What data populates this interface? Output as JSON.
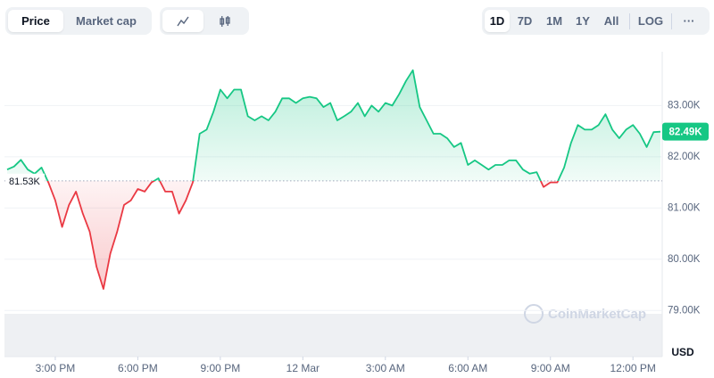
{
  "toolbar": {
    "tabs": [
      "Price",
      "Market cap"
    ],
    "ranges": [
      "1D",
      "7D",
      "1M",
      "1Y",
      "All"
    ],
    "log": "LOG",
    "more": "···"
  },
  "watermark": "CoinMarketCap",
  "chart_data": {
    "type": "line",
    "ylabel": "USD",
    "x": [
      1.25,
      1.5,
      1.75,
      2,
      2.25,
      2.5,
      2.75,
      3,
      3.25,
      3.5,
      3.75,
      4,
      4.25,
      4.5,
      4.75,
      5,
      5.25,
      5.5,
      5.75,
      6,
      6.25,
      6.5,
      6.75,
      7,
      7.25,
      7.5,
      7.75,
      8,
      8.25,
      8.5,
      8.75,
      9,
      9.25,
      9.5,
      9.75,
      10,
      10.25,
      10.5,
      10.75,
      11,
      11.25,
      11.5,
      11.75,
      12,
      12.25,
      12.5,
      12.75,
      13,
      13.25,
      13.5,
      13.75,
      14,
      14.25,
      14.5,
      14.75,
      15,
      15.25,
      15.5,
      15.75,
      16,
      16.25,
      16.5,
      16.75,
      17,
      17.25,
      17.5,
      17.75,
      18,
      18.25,
      18.5,
      18.75,
      19,
      19.25,
      19.5,
      19.75,
      20,
      20.25,
      20.5,
      20.75,
      21,
      21.25,
      21.5,
      21.75,
      22,
      22.25,
      22.5,
      22.75,
      23,
      23.25,
      23.5,
      23.75,
      24,
      24.25,
      24.5,
      24.75,
      25
    ],
    "values": [
      81750,
      81810,
      81940,
      81750,
      81670,
      81790,
      81500,
      81150,
      80630,
      81060,
      81320,
      80890,
      80540,
      79850,
      79420,
      80110,
      80540,
      81060,
      81150,
      81370,
      81320,
      81500,
      81580,
      81320,
      81320,
      80890,
      81150,
      81500,
      82450,
      82530,
      82880,
      83310,
      83140,
      83310,
      83310,
      82790,
      82710,
      82790,
      82710,
      82880,
      83140,
      83140,
      83050,
      83140,
      83170,
      83140,
      82970,
      83050,
      82710,
      82790,
      82880,
      83050,
      82790,
      83000,
      82880,
      83050,
      83000,
      83220,
      83480,
      83690,
      82970,
      82710,
      82450,
      82450,
      82360,
      82190,
      82270,
      81840,
      81930,
      81840,
      81750,
      81840,
      81840,
      81930,
      81930,
      81750,
      81670,
      81700,
      81410,
      81500,
      81500,
      81790,
      82270,
      82620,
      82530,
      82530,
      82620,
      82830,
      82530,
      82360,
      82530,
      82620,
      82450,
      82190,
      82480,
      82490
    ],
    "up_color": "#16c784",
    "down_color": "#ea3943",
    "reference_line": {
      "value": 81530,
      "label": "81.53K"
    },
    "last_value_label": {
      "value": 82490,
      "label": "82.49K"
    },
    "xlim": [
      1.25,
      25
    ],
    "xticks": [
      {
        "value": 3,
        "label": "3:00 PM"
      },
      {
        "value": 6,
        "label": "6:00 PM"
      },
      {
        "value": 9,
        "label": "9:00 PM"
      },
      {
        "value": 12,
        "label": "12 Mar"
      },
      {
        "value": 15,
        "label": "3:00 AM"
      },
      {
        "value": 18,
        "label": "6:00 AM"
      },
      {
        "value": 21,
        "label": "9:00 AM"
      },
      {
        "value": 24,
        "label": "12:00 PM"
      }
    ],
    "ylim": [
      78100,
      84050
    ],
    "yticks": [
      {
        "value": 79000,
        "label": "79.00K"
      },
      {
        "value": 80000,
        "label": "80.00K"
      },
      {
        "value": 81000,
        "label": "81.00K"
      },
      {
        "value": 82000,
        "label": "82.00K"
      },
      {
        "value": 83000,
        "label": "83.00K"
      }
    ],
    "grid": true
  }
}
